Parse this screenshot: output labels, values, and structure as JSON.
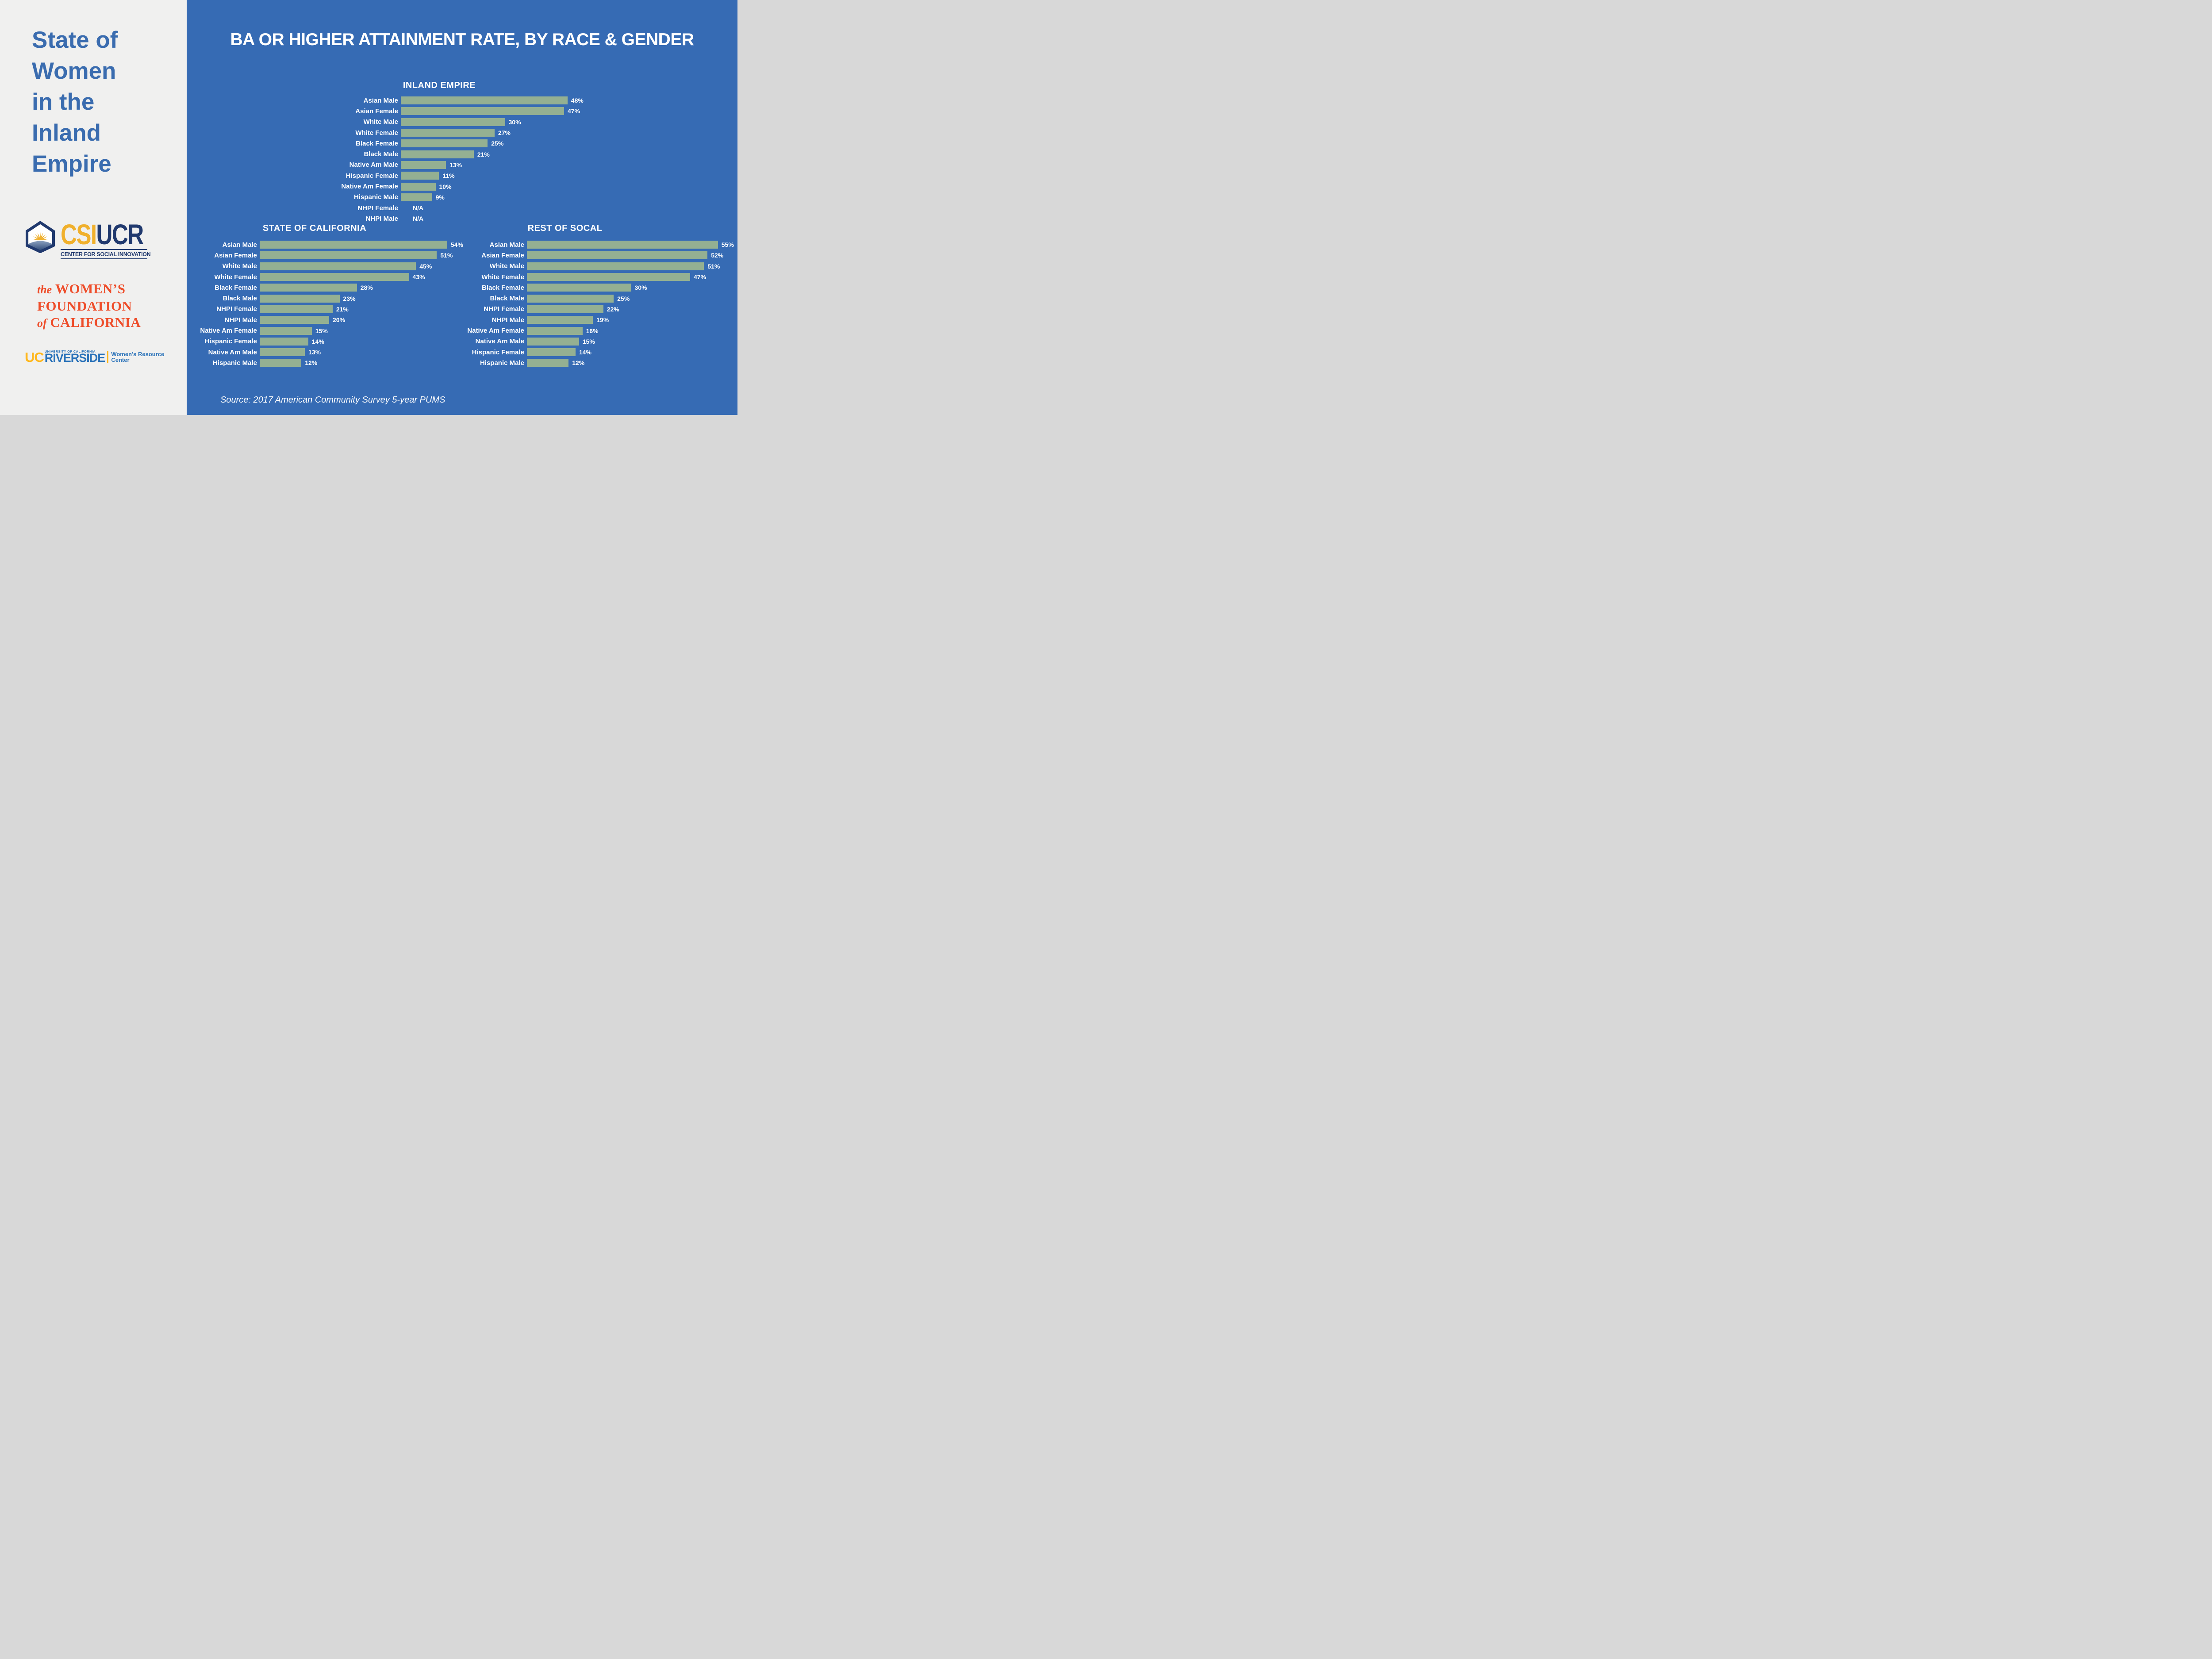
{
  "sidebar": {
    "title_lines": [
      "State of",
      "Women",
      "in the",
      "Inland",
      "Empire"
    ],
    "csi_logo": {
      "csi": "CSI",
      "ucr": "UCR",
      "subtitle": "CENTER FOR SOCIAL INNOVATION"
    },
    "wf_logo": {
      "the": "the",
      "womens": "WOMEN’S",
      "foundation": "FOUNDATION",
      "of": "of",
      "california": "CALIFORNIA"
    },
    "ucr_logo": {
      "uc": "UC",
      "university": "UNIVERSITY OF CALIFORNIA",
      "riverside": "RIVERSIDE",
      "unit_line1": "Women’s Resource",
      "unit_line2": "Center"
    }
  },
  "header": {
    "title": "BA OR HIGHER ATTAINMENT RATE, BY RACE & GENDER"
  },
  "source_note": "Source: 2017 American Community Survey 5-year PUMS",
  "colors": {
    "background_blue": "#366bb4",
    "bar_green": "#94b092",
    "sidebar_bg": "#f0f0ef",
    "sidebar_title_blue": "#3a6caf",
    "csi_gold": "#f0b02c",
    "csi_navy": "#20396e",
    "wf_orange": "#ee4d2a",
    "ucr_gold": "#ffb71c",
    "ucr_blue": "#2a72b9",
    "chart_text": "#ffffff"
  },
  "chart_data": [
    {
      "type": "bar",
      "orientation": "horizontal",
      "title": "INLAND EMPIRE",
      "unit": "percent",
      "xlim": [
        0,
        60
      ],
      "grid": false,
      "categories": [
        "Asian Male",
        "Asian Female",
        "White Male",
        "White Female",
        "Black Female",
        "Black Male",
        "Native Am Male",
        "Hispanic Female",
        "Native Am Female",
        "Hispanic Male",
        "NHPI Female",
        "NHPI Male"
      ],
      "values": [
        48,
        47,
        30,
        27,
        25,
        21,
        13,
        11,
        10,
        9,
        null,
        null
      ],
      "value_labels": [
        "48%",
        "47%",
        "30%",
        "27%",
        "25%",
        "21%",
        "13%",
        "11%",
        "10%",
        "9%",
        "N/A",
        "N/A"
      ]
    },
    {
      "type": "bar",
      "orientation": "horizontal",
      "title": "STATE OF CALIFORNIA",
      "unit": "percent",
      "xlim": [
        0,
        60
      ],
      "grid": false,
      "categories": [
        "Asian Male",
        "Asian Female",
        "White Male",
        "White Female",
        "Black Female",
        "Black Male",
        "NHPI Female",
        "NHPI Male",
        "Native Am Female",
        "Hispanic Female",
        "Native Am Male",
        "Hispanic Male"
      ],
      "values": [
        54,
        51,
        45,
        43,
        28,
        23,
        21,
        20,
        15,
        14,
        13,
        12
      ],
      "value_labels": [
        "54%",
        "51%",
        "45%",
        "43%",
        "28%",
        "23%",
        "21%",
        "20%",
        "15%",
        "14%",
        "13%",
        "12%"
      ]
    },
    {
      "type": "bar",
      "orientation": "horizontal",
      "title": "REST OF SOCAL",
      "unit": "percent",
      "xlim": [
        0,
        60
      ],
      "grid": false,
      "categories": [
        "Asian Male",
        "Asian Female",
        "White Male",
        "White Female",
        "Black Female",
        "Black Male",
        "NHPI Female",
        "NHPI Male",
        "Native Am Female",
        "Native Am Male",
        "Hispanic Female",
        "Hispanic Male"
      ],
      "values": [
        55,
        52,
        51,
        47,
        30,
        25,
        22,
        19,
        16,
        15,
        14,
        12
      ],
      "value_labels": [
        "55%",
        "52%",
        "51%",
        "47%",
        "30%",
        "25%",
        "22%",
        "19%",
        "16%",
        "15%",
        "14%",
        "12%"
      ]
    }
  ]
}
